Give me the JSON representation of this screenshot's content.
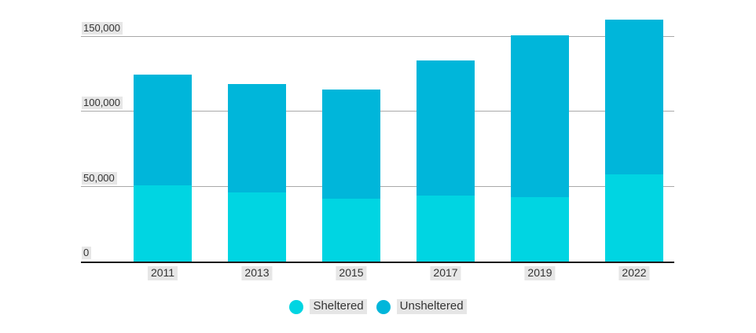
{
  "chart_data": {
    "type": "bar",
    "stacked": true,
    "title": "",
    "categories": [
      "2011",
      "2013",
      "2015",
      "2017",
      "2019",
      "2022"
    ],
    "series": [
      {
        "name": "Sheltered",
        "color": "#00d5e2",
        "values": [
          51000,
          46000,
          42000,
          44000,
          43000,
          58000
        ]
      },
      {
        "name": "Unsheltered",
        "color": "#00b6da",
        "values": [
          74000,
          72000,
          73000,
          90000,
          108000,
          103000
        ]
      }
    ],
    "stacked_totals": [
      125000,
      118000,
      115000,
      134000,
      151000,
      161000
    ],
    "xlabel": "",
    "ylabel": "",
    "ylim": [
      0,
      175000
    ],
    "y_ticks": [
      {
        "value": 0,
        "label": "0"
      },
      {
        "value": 50000,
        "label": "50,000"
      },
      {
        "value": 100000,
        "label": "100,000"
      },
      {
        "value": 150000,
        "label": "150,000"
      }
    ],
    "grid": true,
    "legend_position": "bottom",
    "legend": [
      {
        "label": "Sheltered",
        "color": "#00d5e2"
      },
      {
        "label": "Unsheltered",
        "color": "#00b6da"
      }
    ]
  },
  "colors": {
    "sheltered": "#00d5e2",
    "unsheltered": "#00b6da",
    "gridline": "#a9a9a9",
    "axis_line": "#1b1b1b",
    "label_background": "#e6e6e6",
    "text": "#333333",
    "background": "#ffffff"
  }
}
